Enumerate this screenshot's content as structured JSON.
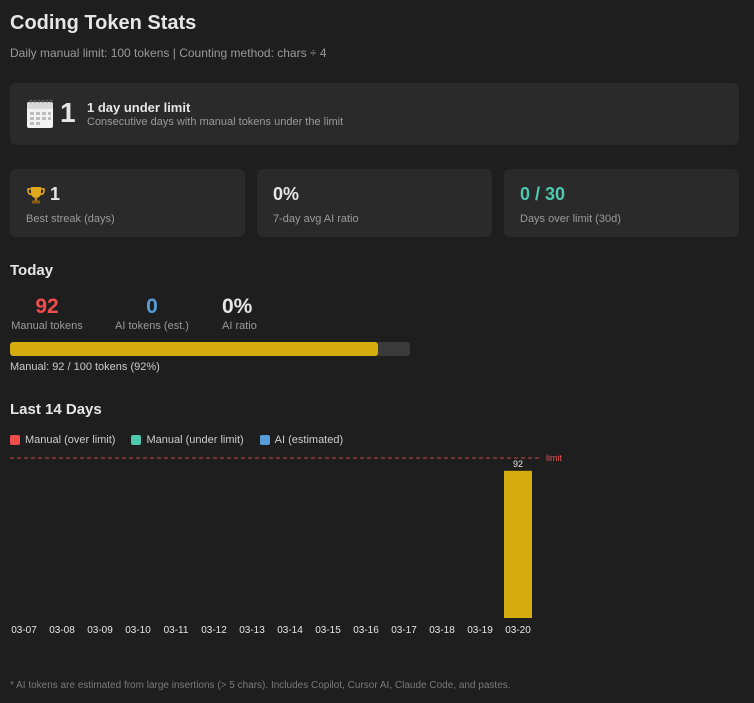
{
  "header": {
    "title": "Coding Token Stats",
    "subtitle": "Daily manual limit: 100 tokens  |  Counting method: chars ÷ 4"
  },
  "streak": {
    "icon": "calendar-icon",
    "value": "1",
    "title": "1 day under limit",
    "description": "Consecutive days with manual tokens under the limit"
  },
  "stats": [
    {
      "icon": "trophy-icon",
      "value": "1",
      "label": "Best streak (days)",
      "color": "#e6e6e6"
    },
    {
      "value": "0%",
      "label": "7-day avg AI ratio",
      "color": "#e6e6e6"
    },
    {
      "value": "0 / 30",
      "label": "Days over limit (30d)",
      "color": "#4ec9b0"
    }
  ],
  "today": {
    "heading": "Today",
    "manual": {
      "value": "92",
      "label": "Manual tokens",
      "color": "#f14c4c"
    },
    "ai": {
      "value": "0",
      "label": "AI tokens (est.)",
      "color": "#569cd6"
    },
    "ratio": {
      "value": "0%",
      "label": "AI ratio",
      "color": "#e6e6e6"
    },
    "progress_fraction": 0.92,
    "progress_text": "Manual: 92 / 100 tokens (92%)",
    "bar_color": "#d4ac0d"
  },
  "history": {
    "heading": "Last 14 Days",
    "legend": [
      {
        "label": "Manual (over limit)",
        "color": "#f14c4c"
      },
      {
        "label": "Manual (under limit)",
        "color": "#4ec9b0"
      },
      {
        "label": "AI (estimated)",
        "color": "#569cd6"
      }
    ],
    "limit_label": "limit",
    "limit_color": "#c74b4b"
  },
  "chart_data": {
    "type": "bar",
    "categories": [
      "03-07",
      "03-08",
      "03-09",
      "03-10",
      "03-11",
      "03-12",
      "03-13",
      "03-14",
      "03-15",
      "03-16",
      "03-17",
      "03-18",
      "03-19",
      "03-20"
    ],
    "values": [
      0,
      0,
      0,
      0,
      0,
      0,
      0,
      0,
      0,
      0,
      0,
      0,
      0,
      92
    ],
    "data_labels": [
      "",
      "",
      "",
      "",
      "",
      "",
      "",
      "",
      "",
      "",
      "",
      "",
      "",
      "92"
    ],
    "limit": 100,
    "ylim": [
      0,
      100
    ],
    "bar_color": "#d4ac0d",
    "title": "",
    "xlabel": "",
    "ylabel": "",
    "grid": false
  },
  "footnote": "* AI tokens are estimated from large insertions (> 5 chars). Includes Copilot, Cursor AI, Claude Code, and pastes."
}
